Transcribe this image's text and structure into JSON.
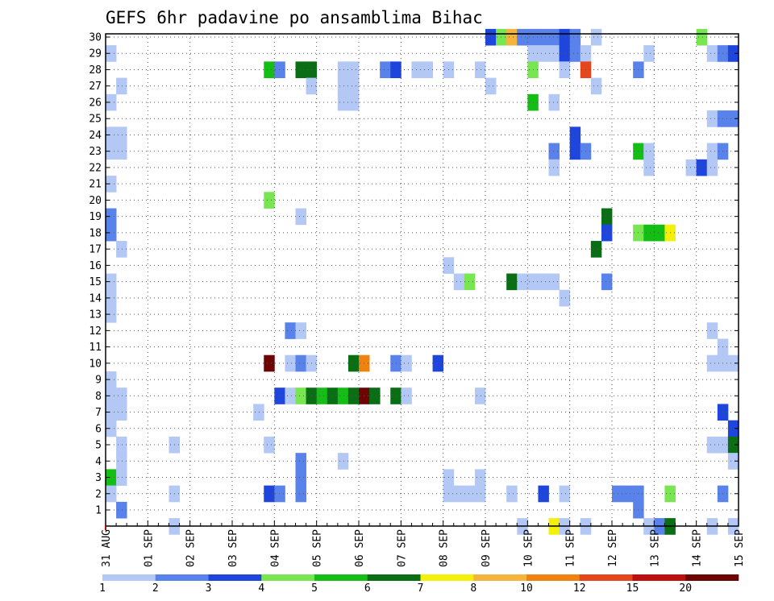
{
  "chart_data": {
    "type": "heatmap",
    "title": "GEFS 6hr padavine po ansamblima Bihac",
    "x_tick_labels": [
      "31 AUG",
      "01 SEP",
      "02 SEP",
      "03 SEP",
      "04 SEP",
      "05 SEP",
      "06 SEP",
      "07 SEP",
      "08 SEP",
      "09 SEP",
      "10 SEP",
      "11 SEP",
      "12 SEP",
      "13 SEP",
      "14 SEP",
      "15 SEP"
    ],
    "y_tick_labels": [
      "1",
      "2",
      "3",
      "4",
      "5",
      "6",
      "7",
      "8",
      "9",
      "10",
      "11",
      "12",
      "13",
      "14",
      "15",
      "16",
      "17",
      "18",
      "19",
      "20",
      "21",
      "22",
      "23",
      "24",
      "25",
      "26",
      "27",
      "28",
      "29",
      "30"
    ],
    "xlim": [
      0,
      60
    ],
    "ylim": [
      0,
      30
    ],
    "grid": true,
    "colorbar": {
      "labels": [
        "1",
        "2",
        "3",
        "4",
        "5",
        "6",
        "7",
        "8",
        "10",
        "12",
        "15",
        "20"
      ],
      "colors": [
        "#b4c8f5",
        "#5a82eb",
        "#1e46dc",
        "#78e650",
        "#14be14",
        "#0a6e14",
        "#f5f00a",
        "#f5b43c",
        "#f0820f",
        "#e6461e",
        "#be0f0f",
        "#6e0505"
      ]
    },
    "cells": [
      [
        0,
        28,
        0
      ],
      [
        0,
        25,
        0
      ],
      [
        0,
        23,
        0
      ],
      [
        0,
        22,
        0
      ],
      [
        0,
        20,
        0
      ],
      [
        0,
        18,
        1
      ],
      [
        0,
        17,
        1
      ],
      [
        0,
        14,
        0
      ],
      [
        0,
        13,
        0
      ],
      [
        0,
        12,
        0
      ],
      [
        0,
        8,
        0
      ],
      [
        0,
        7,
        0
      ],
      [
        0,
        6,
        0
      ],
      [
        0,
        5,
        0
      ],
      [
        0,
        2,
        4
      ],
      [
        0,
        1,
        0
      ],
      [
        1,
        26,
        0
      ],
      [
        1,
        23,
        0
      ],
      [
        1,
        22,
        0
      ],
      [
        1,
        16,
        0
      ],
      [
        1,
        7,
        0
      ],
      [
        1,
        6,
        0
      ],
      [
        1,
        4,
        0
      ],
      [
        1,
        3,
        0
      ],
      [
        1,
        2,
        0
      ],
      [
        1,
        0,
        1
      ],
      [
        6,
        4,
        0
      ],
      [
        6,
        1,
        0
      ],
      [
        6,
        -1,
        0
      ],
      [
        14,
        6,
        0
      ],
      [
        15,
        27,
        4
      ],
      [
        15,
        19,
        3
      ],
      [
        15,
        9,
        11
      ],
      [
        15,
        4,
        0
      ],
      [
        15,
        1,
        2
      ],
      [
        16,
        27,
        1
      ],
      [
        16,
        7,
        2
      ],
      [
        16,
        1,
        1
      ],
      [
        17,
        11,
        1
      ],
      [
        17,
        9,
        0
      ],
      [
        17,
        7,
        0
      ],
      [
        18,
        27,
        5
      ],
      [
        18,
        18,
        0
      ],
      [
        18,
        11,
        0
      ],
      [
        18,
        9,
        1
      ],
      [
        18,
        7,
        3
      ],
      [
        18,
        1,
        1
      ],
      [
        18,
        3,
        1
      ],
      [
        18,
        2,
        1
      ],
      [
        19,
        27,
        5
      ],
      [
        19,
        26,
        0
      ],
      [
        19,
        9,
        0
      ],
      [
        19,
        7,
        5
      ],
      [
        20,
        7,
        4
      ],
      [
        21,
        7,
        5
      ],
      [
        22,
        27,
        0
      ],
      [
        22,
        26,
        0
      ],
      [
        22,
        25,
        0
      ],
      [
        22,
        7,
        4
      ],
      [
        22,
        3,
        0
      ],
      [
        23,
        27,
        0
      ],
      [
        23,
        26,
        0
      ],
      [
        23,
        25,
        0
      ],
      [
        23,
        9,
        5
      ],
      [
        23,
        7,
        5
      ],
      [
        24,
        9,
        8
      ],
      [
        24,
        7,
        11
      ],
      [
        25,
        7,
        5
      ],
      [
        26,
        27,
        1
      ],
      [
        27,
        27,
        2
      ],
      [
        27,
        9,
        1
      ],
      [
        27,
        7,
        5
      ],
      [
        28,
        9,
        0
      ],
      [
        28,
        7,
        0
      ],
      [
        29,
        27,
        0
      ],
      [
        30,
        27,
        0
      ],
      [
        31,
        9,
        2
      ],
      [
        32,
        27,
        0
      ],
      [
        32,
        15,
        0
      ],
      [
        32,
        2,
        0
      ],
      [
        32,
        1,
        0
      ],
      [
        33,
        14,
        0
      ],
      [
        33,
        1,
        0
      ],
      [
        34,
        14,
        3
      ],
      [
        34,
        1,
        0
      ],
      [
        35,
        27,
        0
      ],
      [
        35,
        7,
        0
      ],
      [
        35,
        2,
        0
      ],
      [
        35,
        1,
        0
      ],
      [
        36,
        29,
        2
      ],
      [
        36,
        26,
        0
      ],
      [
        37,
        29,
        3
      ],
      [
        38,
        29,
        7
      ],
      [
        38,
        14,
        5
      ],
      [
        38,
        1,
        0
      ],
      [
        39,
        29,
        1
      ],
      [
        39,
        14,
        0
      ],
      [
        39,
        -1,
        0
      ],
      [
        40,
        29,
        1
      ],
      [
        40,
        28,
        0
      ],
      [
        40,
        27,
        3
      ],
      [
        40,
        25,
        4
      ],
      [
        40,
        14,
        0
      ],
      [
        41,
        29,
        1
      ],
      [
        41,
        28,
        0
      ],
      [
        41,
        14,
        0
      ],
      [
        41,
        1,
        2
      ],
      [
        42,
        29,
        1
      ],
      [
        42,
        28,
        0
      ],
      [
        42,
        25,
        0
      ],
      [
        42,
        22,
        1
      ],
      [
        42,
        21,
        0
      ],
      [
        42,
        14,
        0
      ],
      [
        42,
        -1,
        6
      ],
      [
        43,
        29,
        2
      ],
      [
        43,
        28,
        2
      ],
      [
        43,
        27,
        0
      ],
      [
        43,
        13,
        0
      ],
      [
        43,
        -1,
        0
      ],
      [
        43,
        1,
        0
      ],
      [
        44,
        29,
        1
      ],
      [
        44,
        28,
        1
      ],
      [
        44,
        23,
        2
      ],
      [
        44,
        22,
        2
      ],
      [
        45,
        28,
        0
      ],
      [
        45,
        27,
        9
      ],
      [
        45,
        22,
        1
      ],
      [
        45,
        -1,
        0
      ],
      [
        46,
        29,
        0
      ],
      [
        46,
        26,
        0
      ],
      [
        46,
        16,
        5
      ],
      [
        47,
        18,
        5
      ],
      [
        47,
        17,
        2
      ],
      [
        47,
        14,
        1
      ],
      [
        48,
        1,
        1
      ],
      [
        49,
        1,
        1
      ],
      [
        50,
        27,
        1
      ],
      [
        50,
        22,
        4
      ],
      [
        50,
        17,
        3
      ],
      [
        50,
        0,
        1
      ],
      [
        50,
        1,
        1
      ],
      [
        51,
        28,
        0
      ],
      [
        51,
        22,
        0
      ],
      [
        51,
        21,
        0
      ],
      [
        51,
        17,
        4
      ],
      [
        51,
        -1,
        0
      ],
      [
        52,
        17,
        4
      ],
      [
        52,
        -1,
        1
      ],
      [
        53,
        17,
        6
      ],
      [
        53,
        -1,
        5
      ],
      [
        53,
        1,
        3
      ],
      [
        55,
        21,
        0
      ],
      [
        56,
        29,
        3
      ],
      [
        56,
        21,
        2
      ],
      [
        57,
        28,
        0
      ],
      [
        57,
        24,
        0
      ],
      [
        57,
        22,
        0
      ],
      [
        57,
        21,
        0
      ],
      [
        57,
        11,
        0
      ],
      [
        57,
        9,
        0
      ],
      [
        57,
        4,
        0
      ],
      [
        57,
        -1,
        0
      ],
      [
        58,
        28,
        1
      ],
      [
        58,
        24,
        1
      ],
      [
        58,
        22,
        1
      ],
      [
        58,
        10,
        0
      ],
      [
        58,
        9,
        0
      ],
      [
        58,
        6,
        2
      ],
      [
        58,
        4,
        0
      ],
      [
        58,
        1,
        1
      ],
      [
        59,
        28,
        2
      ],
      [
        59,
        24,
        1
      ],
      [
        59,
        9,
        0
      ],
      [
        59,
        5,
        2
      ],
      [
        59,
        4,
        5
      ],
      [
        59,
        3,
        0
      ],
      [
        59,
        -1,
        0
      ]
    ]
  }
}
